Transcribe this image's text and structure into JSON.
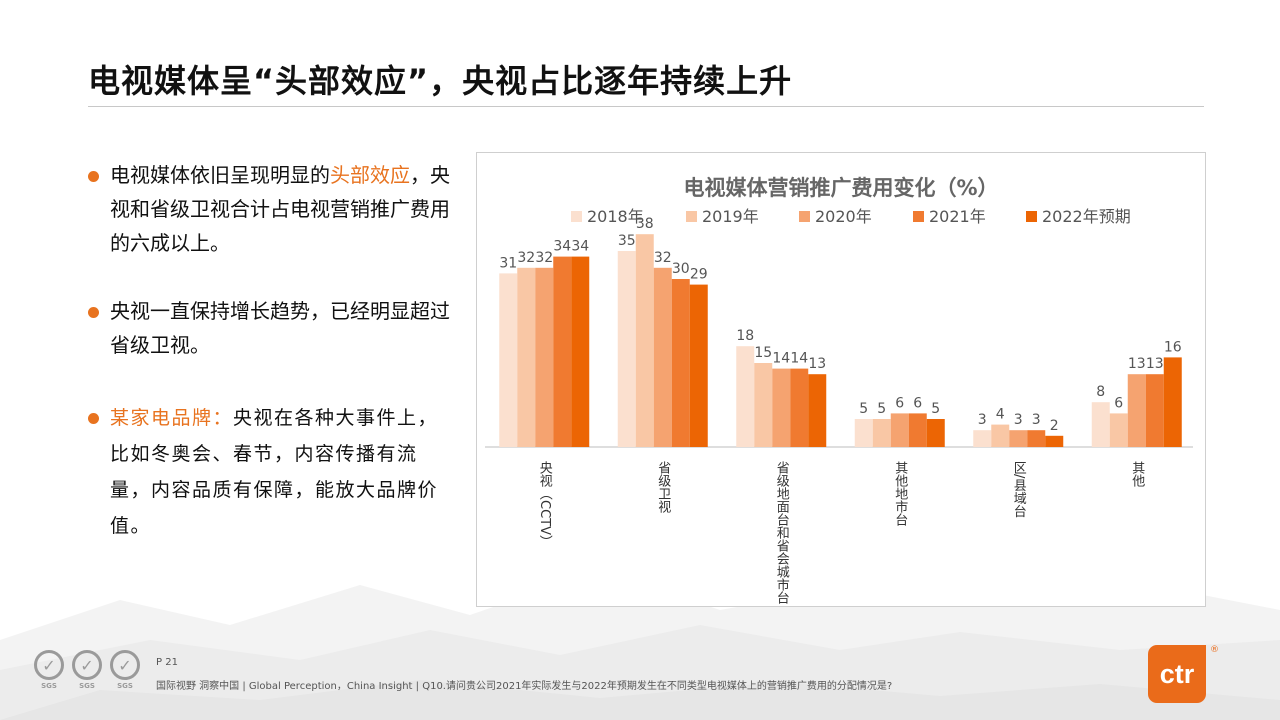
{
  "slide": {
    "title": "电视媒体呈“头部效应”，央视占比逐年持续上升",
    "bullets": [
      {
        "before": "电视媒体依旧呈现明显的",
        "highlight": "头部效应",
        "after": "，央视和省级卫视合计占电视营销推广费用的六成以上。"
      },
      {
        "text": "央视一直保持增长趋势，已经明显超过省级卫视。"
      },
      {
        "brand": "某家电品牌：",
        "text": "央视在各种大事件上，比如冬奥会、春节，内容传播有流量，内容品质有保障，能放大品牌价值。"
      }
    ],
    "page_number": "P 21",
    "footnote": "国际视野  洞察中国 |  Global Perception，China Insight | Q10.请问贵公司2021年实际发生与2022年预期发生在不同类型电视媒体上的营销推广费用的分配情况是?",
    "cert_label": "SGS",
    "cert_count": 3,
    "logo_text": "ctr",
    "logo_reg": "®",
    "accent_color": "#e8731f"
  },
  "chart_data": {
    "type": "bar",
    "title": "电视媒体营销推广费用变化（%）",
    "categories": [
      "央视（CCTV）",
      "省级卫视",
      "省级地面台和省会城市台",
      "其他地市台",
      "区/县域台",
      "其他"
    ],
    "series": [
      {
        "name": "2018年",
        "color": "#fbe0cf",
        "values": [
          31,
          35,
          18,
          5,
          3,
          8
        ]
      },
      {
        "name": "2019年",
        "color": "#f9c7a5",
        "values": [
          32,
          38,
          15,
          5,
          4,
          6
        ]
      },
      {
        "name": "2020年",
        "color": "#f5a370",
        "values": [
          32,
          32,
          14,
          6,
          3,
          13
        ]
      },
      {
        "name": "2021年",
        "color": "#f07a30",
        "values": [
          34,
          30,
          14,
          6,
          3,
          13
        ]
      },
      {
        "name": "2022年预期",
        "color": "#ec6504",
        "values": [
          34,
          29,
          13,
          5,
          2,
          16
        ]
      }
    ],
    "ylim": [
      0,
      40
    ],
    "legend": "top",
    "grid": false,
    "data_labels": true,
    "xlabel": "",
    "ylabel": ""
  }
}
